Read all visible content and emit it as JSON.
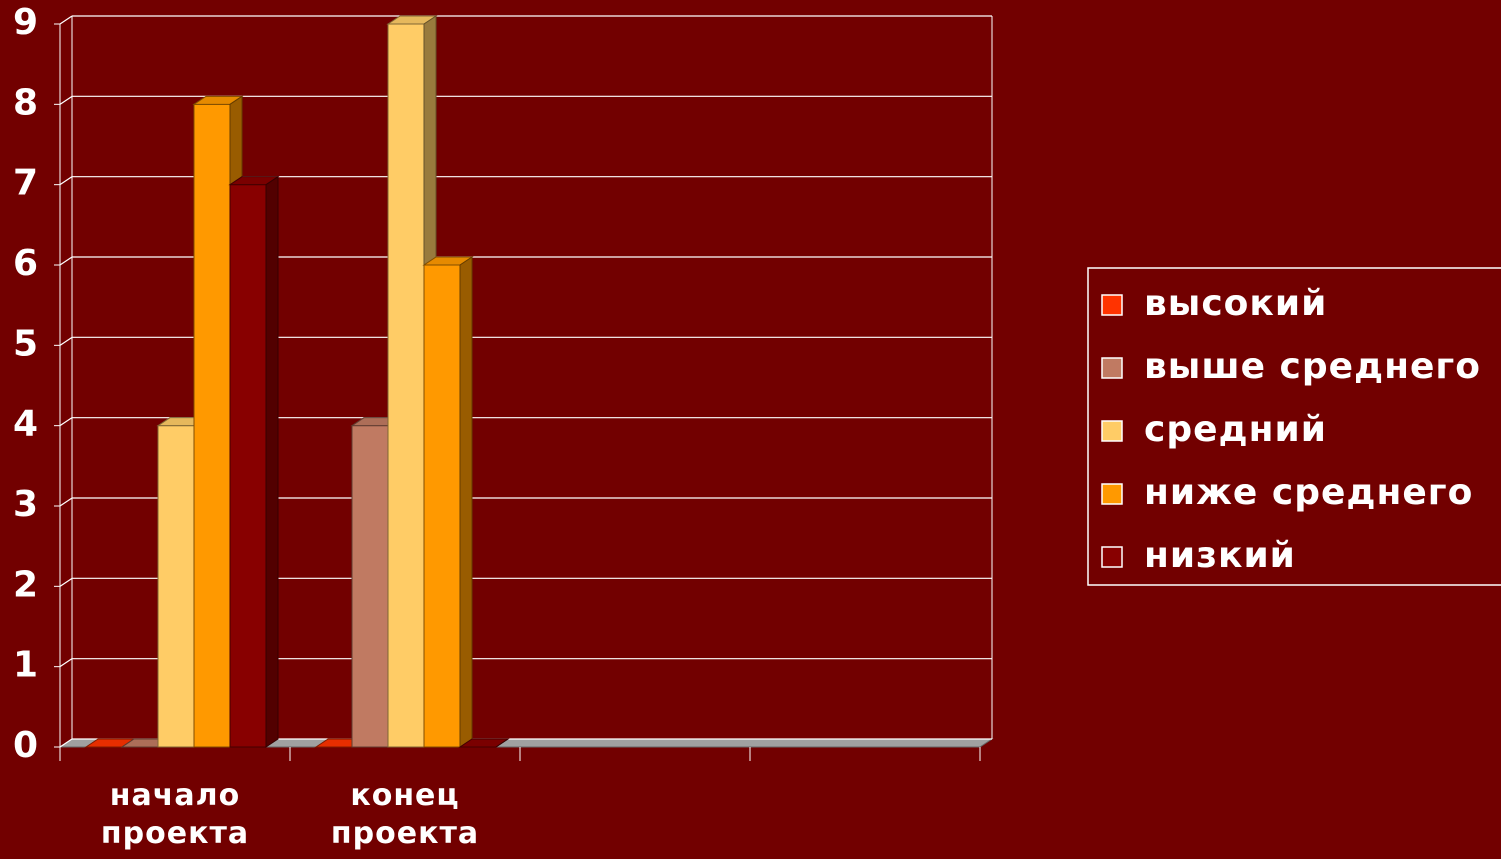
{
  "chart_data": {
    "type": "bar3d",
    "categories": [
      "начало проекта",
      "конец проекта",
      null,
      null
    ],
    "series": [
      {
        "name": "высокий",
        "color": "#ff3300",
        "values": [
          0,
          0,
          null,
          null
        ]
      },
      {
        "name": "выше среднего",
        "color": "#c07a62",
        "values": [
          0,
          4,
          null,
          null
        ]
      },
      {
        "name": "средний",
        "color": "#ffcc66",
        "values": [
          4,
          9,
          null,
          null
        ]
      },
      {
        "name": "ниже среднего",
        "color": "#ff9900",
        "values": [
          8,
          6,
          null,
          null
        ]
      },
      {
        "name": "низкий",
        "color": "#880000",
        "values": [
          7,
          0,
          null,
          null
        ]
      }
    ],
    "ylim": [
      0,
      9
    ],
    "yticks": [
      0,
      1,
      2,
      3,
      4,
      5,
      6,
      7,
      8,
      9
    ],
    "grid": true,
    "legend": "right"
  }
}
